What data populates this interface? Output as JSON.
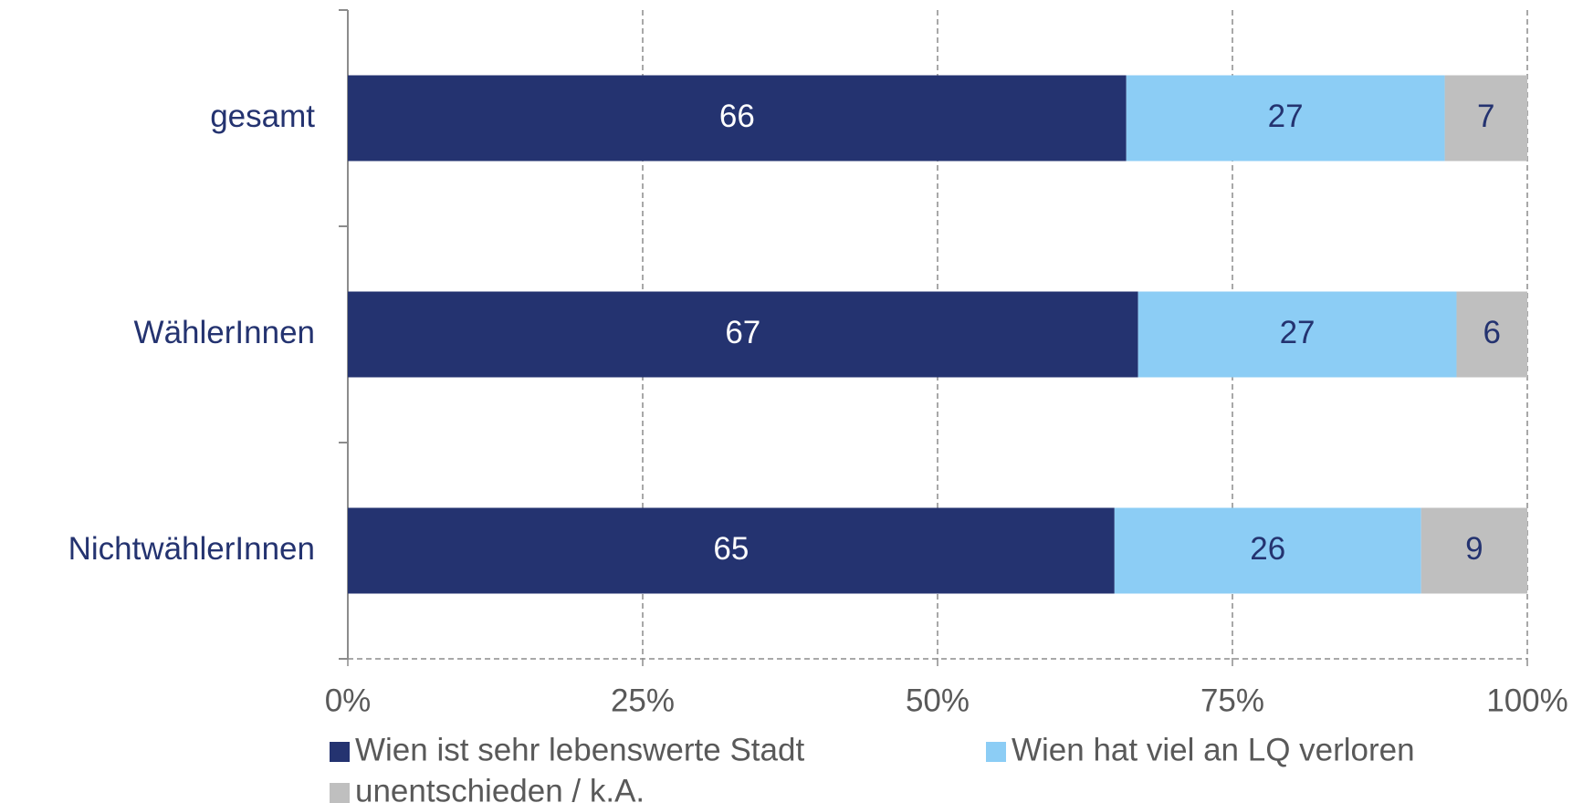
{
  "chart_data": {
    "type": "bar",
    "orientation": "horizontal",
    "stacked": true,
    "categories": [
      "gesamt",
      "WählerInnen",
      "NichtwählerInnen"
    ],
    "series": [
      {
        "name": "Wien ist sehr lebenswerte Stadt",
        "color": "#243370",
        "values": [
          66,
          67,
          65
        ]
      },
      {
        "name": "Wien hat viel an LQ verloren",
        "color": "#8ccdf5",
        "values": [
          27,
          27,
          26
        ]
      },
      {
        "name": "unentschieden / k.A.",
        "color": "#bfbfbf",
        "values": [
          7,
          6,
          9
        ]
      }
    ],
    "xlim": [
      0,
      100
    ],
    "xticks": [
      {
        "value": 0,
        "label": "0%"
      },
      {
        "value": 25,
        "label": "25%"
      },
      {
        "value": 50,
        "label": "50%"
      },
      {
        "value": 75,
        "label": "75%"
      },
      {
        "value": 100,
        "label": "100%"
      }
    ],
    "grid": true,
    "legend": "bottom"
  }
}
